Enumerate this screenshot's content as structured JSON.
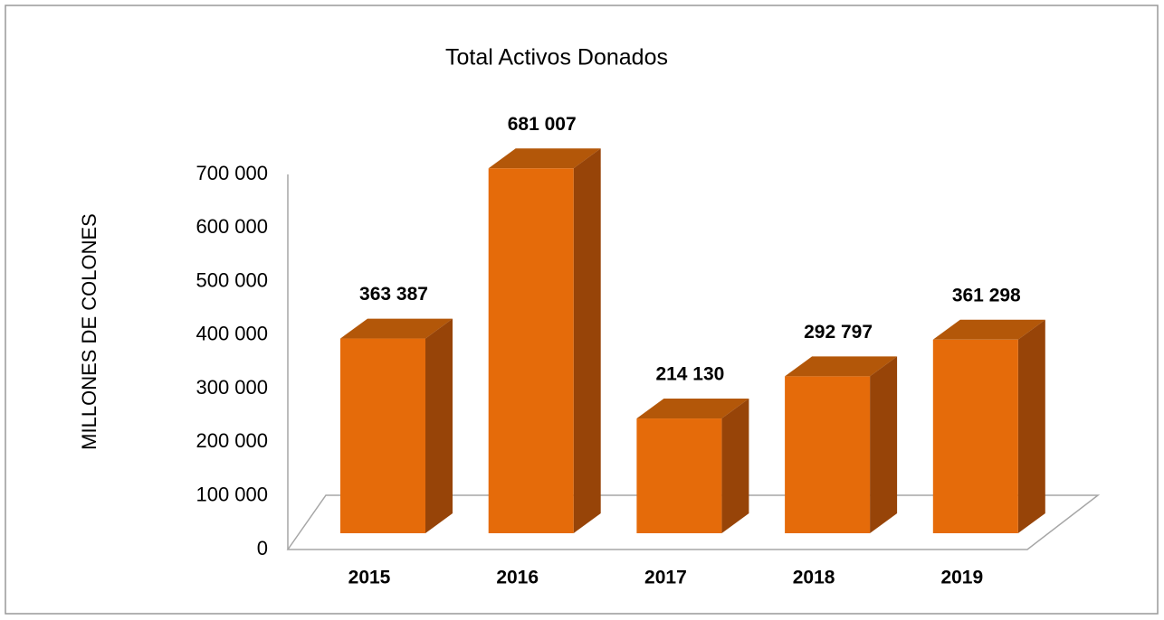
{
  "chart_data": {
    "type": "bar3d",
    "title": "Total Activos Donados",
    "y_label": "MILLONES DE COLONES",
    "categories": [
      "2015",
      "2016",
      "2017",
      "2018",
      "2019"
    ],
    "values": [
      363387,
      681007,
      214130,
      292797,
      361298
    ],
    "value_labels": [
      "363 387",
      "681 007",
      "214 130",
      "292 797",
      "361 298"
    ],
    "color": "#e56b0a",
    "ylim": [
      0,
      700000
    ],
    "yticks": [
      0,
      {
        "value": 100000,
        "label": "100 000"
      },
      {
        "value": 200000,
        "label": "200 000"
      },
      {
        "value": 300000,
        "label": "300 000"
      },
      {
        "value": 400000,
        "label": "400 000"
      },
      {
        "value": 500000,
        "label": "500 000"
      },
      {
        "value": 600000,
        "label": "600 000"
      },
      {
        "value": 700000,
        "label": "700 000"
      }
    ]
  }
}
